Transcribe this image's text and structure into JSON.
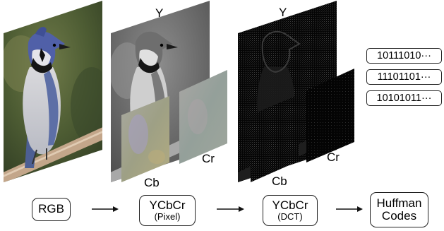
{
  "stage_labels": {
    "rgb": "RGB",
    "ycbcr_pixel_main": "YCbCr",
    "ycbcr_pixel_sub": "(Pixel)",
    "ycbcr_dct_main": "YCbCr",
    "ycbcr_dct_sub": "(DCT)",
    "huffman_line1": "Huffman",
    "huffman_line2": "Codes"
  },
  "channel_labels": {
    "pixel_y": "Y",
    "pixel_cb": "Cb",
    "pixel_cr": "Cr",
    "dct_y": "Y",
    "dct_cb": "Cb",
    "dct_cr": "Cr"
  },
  "huffman_codes": [
    "10111010···",
    "11101101···",
    "10101011···"
  ],
  "colors": {
    "pixel_cr_tint": "#9aa39a",
    "pixel_cb_tint": "#a7a77f",
    "dct_background": "#050505"
  }
}
